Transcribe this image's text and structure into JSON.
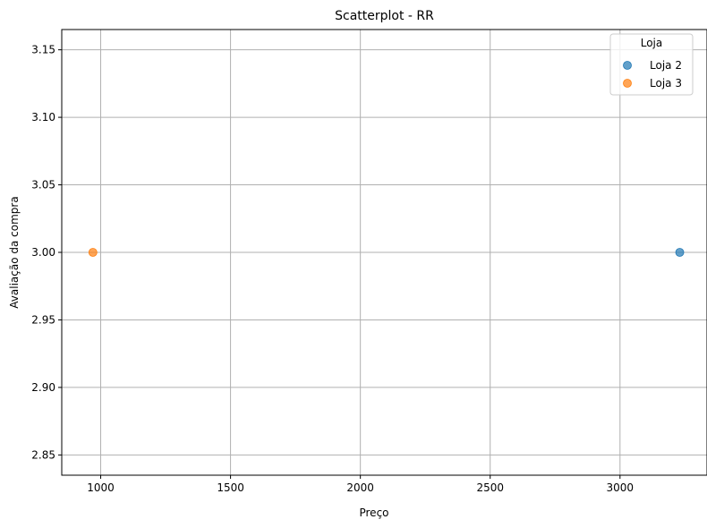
{
  "chart_data": {
    "type": "scatter",
    "title": "Scatterplot - RR",
    "xlabel": "Preço",
    "ylabel": "Avaliação da compra",
    "xlim": [
      850,
      3335
    ],
    "ylim": [
      2.835,
      3.165
    ],
    "xticks": [
      1000,
      1500,
      2000,
      2500,
      3000
    ],
    "xtick_labels": [
      "1000",
      "1500",
      "2000",
      "2500",
      "3000"
    ],
    "yticks": [
      2.85,
      2.9,
      2.95,
      3.0,
      3.05,
      3.1,
      3.15
    ],
    "ytick_labels": [
      "2.85",
      "2.90",
      "2.95",
      "3.00",
      "3.05",
      "3.10",
      "3.15"
    ],
    "grid": true,
    "legend": {
      "title": "Loja",
      "placement": "top-right"
    },
    "series": [
      {
        "name": "Loja 2",
        "color": "#1f77b4",
        "points": [
          {
            "x": 3230,
            "y": 3.0
          }
        ]
      },
      {
        "name": "Loja 3",
        "color": "#ff7f0e",
        "points": [
          {
            "x": 970,
            "y": 3.0
          }
        ]
      }
    ]
  }
}
